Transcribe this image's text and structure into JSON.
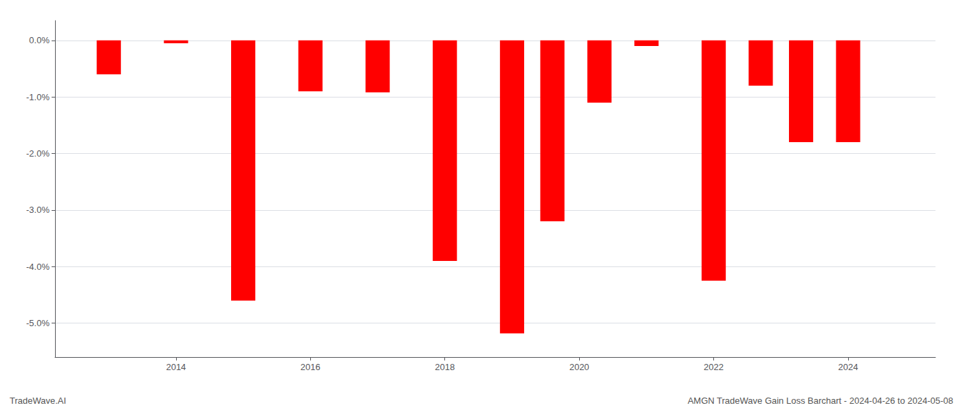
{
  "chart_data": {
    "type": "bar",
    "x": [
      2013,
      2014,
      2015,
      2016,
      2017,
      2018,
      2019,
      2019.6,
      2020.3,
      2021,
      2022,
      2022.7,
      2023.3,
      2024
    ],
    "values": [
      -0.6,
      -0.05,
      -4.6,
      -0.9,
      -0.92,
      -3.9,
      -5.18,
      -3.2,
      -1.1,
      -0.1,
      -4.25,
      -0.8,
      -1.8,
      -1.8
    ],
    "color": "#ff0000",
    "xlim": [
      2012.2,
      2025.3
    ],
    "xticks": [
      2014,
      2016,
      2018,
      2020,
      2022,
      2024
    ],
    "ylim": [
      -5.6,
      0.35
    ],
    "yticks": [
      {
        "value": 0.0,
        "label": "0.0%"
      },
      {
        "value": -1.0,
        "label": "-1.0%"
      },
      {
        "value": -2.0,
        "label": "-2.0%"
      },
      {
        "value": -3.0,
        "label": "-3.0%"
      },
      {
        "value": -4.0,
        "label": "-4.0%"
      },
      {
        "value": -5.0,
        "label": "-5.0%"
      }
    ],
    "grid": true,
    "annotations": [
      "TradeWave.AI",
      "AMGN TradeWave Gain Loss Barchart - 2024-04-26 to 2024-05-08"
    ]
  }
}
